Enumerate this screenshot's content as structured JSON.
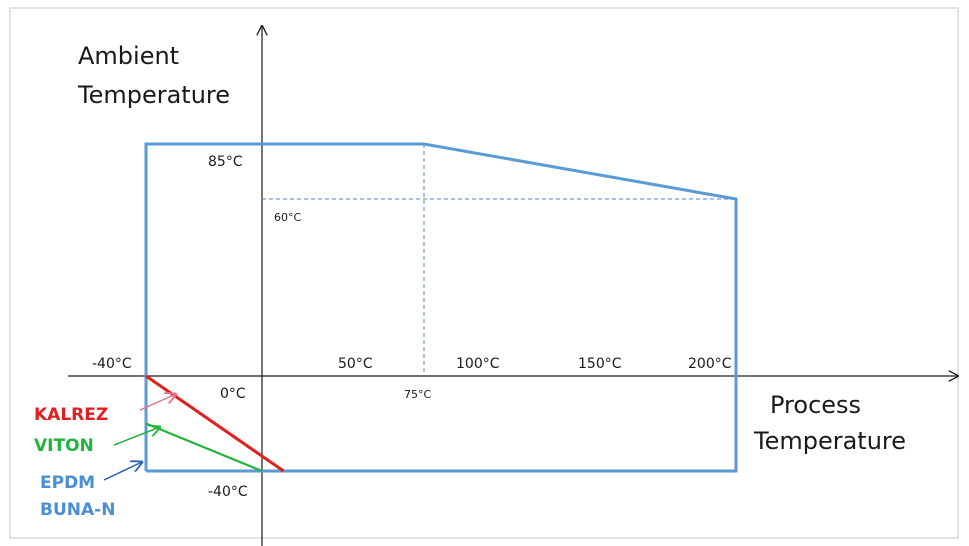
{
  "chart_data": {
    "type": "area",
    "title": "",
    "xlabel": [
      "Process",
      "Temperature"
    ],
    "ylabel": [
      "Ambient",
      "Temperature"
    ],
    "x_ticks": [
      {
        "value": -40,
        "label": "-40°C"
      },
      {
        "value": 0,
        "label": "0°C"
      },
      {
        "value": 50,
        "label": "50°C"
      },
      {
        "value": 75,
        "label": "75°C"
      },
      {
        "value": 100,
        "label": "100°C"
      },
      {
        "value": 150,
        "label": "150°C"
      },
      {
        "value": 200,
        "label": "200°C"
      }
    ],
    "y_ticks": [
      {
        "value": 85,
        "label": "85°C"
      },
      {
        "value": 60,
        "label": "60°C"
      },
      {
        "value": -40,
        "label": "-40°C"
      }
    ],
    "operating_envelope": {
      "color": "#5b9bd5",
      "points": [
        [
          -40,
          -40
        ],
        [
          -40,
          85
        ],
        [
          75,
          85
        ],
        [
          205,
          60
        ],
        [
          205,
          -40
        ],
        [
          -40,
          -40
        ]
      ]
    },
    "guides": [
      {
        "x": [
          75,
          75
        ],
        "y": [
          85,
          0
        ]
      },
      {
        "x": [
          0,
          205
        ],
        "y": [
          60,
          60
        ]
      }
    ],
    "seal_limits": [
      {
        "name": "KALREZ",
        "color": "#e02020",
        "line": [
          [
            -40,
            0
          ],
          [
            10,
            -40
          ]
        ]
      },
      {
        "name": "VITON",
        "color": "#22b33a",
        "line": [
          [
            -40,
            -20
          ],
          [
            0,
            -40
          ]
        ]
      },
      {
        "name": "EPDM",
        "color": "#4a8fd4",
        "line": null
      },
      {
        "name": "BUNA-N",
        "color": "#4a8fd4",
        "line": null
      }
    ]
  }
}
